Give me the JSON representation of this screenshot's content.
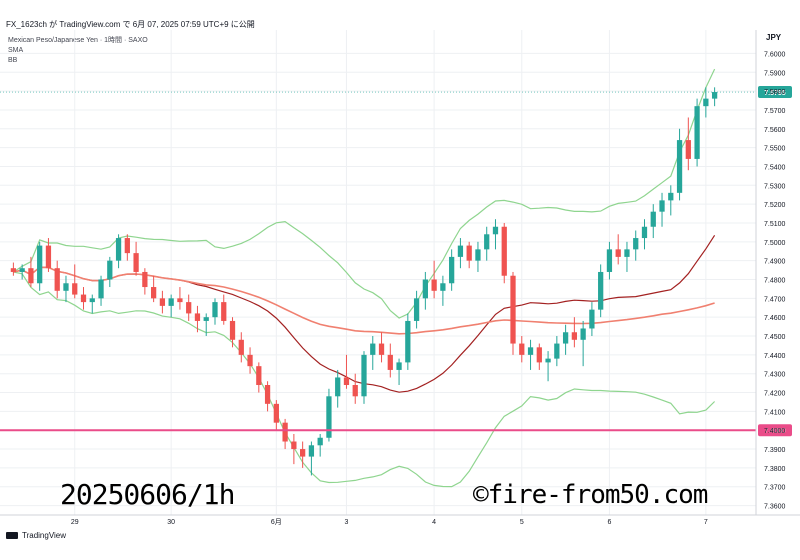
{
  "header": {
    "title": "FX_1623ch が TradingView.com で 6月 07, 2025 07:59 UTC+9 に公開"
  },
  "legend": {
    "instrument": "Mexican Peso/Japanese Yen · 1時間 · SAXO",
    "indicator1": "SMA",
    "indicator2": "BB"
  },
  "axis": {
    "currency": "JPY"
  },
  "watermark": {
    "left": "20250606/1h",
    "right": "©fire-from50.com"
  },
  "footer": {
    "brand": "TradingView"
  },
  "colors": {
    "up": "#26a69a",
    "down": "#ef5350",
    "bb_band": "#8fd58f",
    "sma_short": "#a32121",
    "sma_long": "#f08070",
    "hline": "#ea4c89",
    "last_price_bg": "#26a69a"
  },
  "chart_data": {
    "type": "candlestick",
    "ylim": [
      7.355,
      7.605
    ],
    "y_ticks": [
      "7.6000",
      "7.5900",
      "7.5800",
      "7.5700",
      "7.5600",
      "7.5500",
      "7.5400",
      "7.5300",
      "7.5200",
      "7.5100",
      "7.5000",
      "7.4900",
      "7.4800",
      "7.4700",
      "7.4600",
      "7.4500",
      "7.4400",
      "7.4300",
      "7.4200",
      "7.4100",
      "7.4000",
      "7.3900",
      "7.3800",
      "7.3700",
      "7.3600"
    ],
    "x_labels": [
      {
        "label": "29",
        "index": 7
      },
      {
        "label": "30",
        "index": 18
      },
      {
        "label": "6月",
        "index": 30
      },
      {
        "label": "3",
        "index": 38
      },
      {
        "label": "4",
        "index": 48
      },
      {
        "label": "5",
        "index": 58
      },
      {
        "label": "6",
        "index": 68
      },
      {
        "label": "7",
        "index": 79
      }
    ],
    "last_price": 7.5795,
    "hline_label": "7.4000",
    "hline_value": 7.4,
    "candles": [
      [
        7.486,
        7.489,
        7.482,
        7.484
      ],
      [
        7.484,
        7.488,
        7.48,
        7.486
      ],
      [
        7.486,
        7.492,
        7.476,
        7.478
      ],
      [
        7.478,
        7.5,
        7.474,
        7.498
      ],
      [
        7.498,
        7.502,
        7.484,
        7.486
      ],
      [
        7.486,
        7.49,
        7.47,
        7.474
      ],
      [
        7.474,
        7.482,
        7.468,
        7.478
      ],
      [
        7.478,
        7.488,
        7.47,
        7.472
      ],
      [
        7.472,
        7.476,
        7.464,
        7.468
      ],
      [
        7.468,
        7.472,
        7.462,
        7.47
      ],
      [
        7.47,
        7.482,
        7.466,
        7.48
      ],
      [
        7.48,
        7.492,
        7.476,
        7.49
      ],
      [
        7.49,
        7.504,
        7.486,
        7.502
      ],
      [
        7.502,
        7.504,
        7.49,
        7.494
      ],
      [
        7.494,
        7.5,
        7.482,
        7.484
      ],
      [
        7.484,
        7.486,
        7.472,
        7.476
      ],
      [
        7.476,
        7.482,
        7.468,
        7.47
      ],
      [
        7.47,
        7.474,
        7.462,
        7.466
      ],
      [
        7.466,
        7.472,
        7.46,
        7.47
      ],
      [
        7.47,
        7.476,
        7.464,
        7.468
      ],
      [
        7.468,
        7.472,
        7.458,
        7.462
      ],
      [
        7.462,
        7.466,
        7.452,
        7.458
      ],
      [
        7.458,
        7.462,
        7.45,
        7.46
      ],
      [
        7.46,
        7.47,
        7.456,
        7.468
      ],
      [
        7.468,
        7.472,
        7.456,
        7.458
      ],
      [
        7.458,
        7.46,
        7.444,
        7.448
      ],
      [
        7.448,
        7.452,
        7.436,
        7.44
      ],
      [
        7.44,
        7.444,
        7.43,
        7.434
      ],
      [
        7.434,
        7.436,
        7.42,
        7.424
      ],
      [
        7.424,
        7.426,
        7.41,
        7.414
      ],
      [
        7.414,
        7.416,
        7.4,
        7.404
      ],
      [
        7.404,
        7.406,
        7.39,
        7.394
      ],
      [
        7.394,
        7.398,
        7.382,
        7.39
      ],
      [
        7.39,
        7.394,
        7.38,
        7.386
      ],
      [
        7.386,
        7.394,
        7.376,
        7.392
      ],
      [
        7.392,
        7.398,
        7.386,
        7.396
      ],
      [
        7.396,
        7.422,
        7.394,
        7.418
      ],
      [
        7.418,
        7.432,
        7.412,
        7.428
      ],
      [
        7.428,
        7.44,
        7.422,
        7.424
      ],
      [
        7.424,
        7.43,
        7.414,
        7.418
      ],
      [
        7.418,
        7.442,
        7.414,
        7.44
      ],
      [
        7.44,
        7.45,
        7.432,
        7.446
      ],
      [
        7.446,
        7.452,
        7.436,
        7.44
      ],
      [
        7.44,
        7.446,
        7.428,
        7.432
      ],
      [
        7.432,
        7.438,
        7.424,
        7.436
      ],
      [
        7.436,
        7.462,
        7.432,
        7.458
      ],
      [
        7.458,
        7.474,
        7.454,
        7.47
      ],
      [
        7.47,
        7.484,
        7.464,
        7.48
      ],
      [
        7.48,
        7.49,
        7.47,
        7.474
      ],
      [
        7.474,
        7.482,
        7.466,
        7.478
      ],
      [
        7.478,
        7.496,
        7.474,
        7.492
      ],
      [
        7.492,
        7.502,
        7.486,
        7.498
      ],
      [
        7.498,
        7.5,
        7.486,
        7.49
      ],
      [
        7.49,
        7.5,
        7.484,
        7.496
      ],
      [
        7.496,
        7.508,
        7.49,
        7.504
      ],
      [
        7.504,
        7.512,
        7.496,
        7.508
      ],
      [
        7.508,
        7.51,
        7.478,
        7.482
      ],
      [
        7.482,
        7.484,
        7.44,
        7.446
      ],
      [
        7.446,
        7.45,
        7.436,
        7.44
      ],
      [
        7.44,
        7.448,
        7.432,
        7.444
      ],
      [
        7.444,
        7.446,
        7.432,
        7.436
      ],
      [
        7.436,
        7.442,
        7.426,
        7.438
      ],
      [
        7.438,
        7.45,
        7.434,
        7.446
      ],
      [
        7.446,
        7.456,
        7.44,
        7.452
      ],
      [
        7.452,
        7.46,
        7.444,
        7.448
      ],
      [
        7.448,
        7.458,
        7.434,
        7.454
      ],
      [
        7.454,
        7.468,
        7.45,
        7.464
      ],
      [
        7.464,
        7.488,
        7.46,
        7.484
      ],
      [
        7.484,
        7.5,
        7.48,
        7.496
      ],
      [
        7.496,
        7.504,
        7.488,
        7.492
      ],
      [
        7.492,
        7.5,
        7.484,
        7.496
      ],
      [
        7.496,
        7.506,
        7.49,
        7.502
      ],
      [
        7.502,
        7.512,
        7.496,
        7.508
      ],
      [
        7.508,
        7.52,
        7.502,
        7.516
      ],
      [
        7.516,
        7.526,
        7.508,
        7.522
      ],
      [
        7.522,
        7.53,
        7.514,
        7.526
      ],
      [
        7.526,
        7.56,
        7.522,
        7.554
      ],
      [
        7.554,
        7.566,
        7.538,
        7.544
      ],
      [
        7.544,
        7.576,
        7.54,
        7.572
      ],
      [
        7.572,
        7.582,
        7.566,
        7.576
      ],
      [
        7.576,
        7.582,
        7.572,
        7.5795
      ]
    ]
  }
}
